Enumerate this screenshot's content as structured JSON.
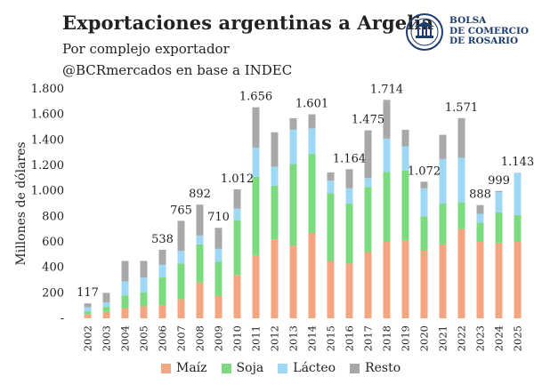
{
  "header": {
    "title": "Exportaciones argentinas a Argelia",
    "subtitle": "Por complejo exportador",
    "source": "@BCRmercados en base a INDEC"
  },
  "logo": {
    "line1": "BOLSA",
    "line2": "DE COMERCIO",
    "line3": "DE ROSARIO"
  },
  "colors": {
    "maiz": "#f4a582",
    "soja": "#7ddb7f",
    "lacteo": "#9fd8f5",
    "resto": "#a8a8a8",
    "brand": "#1f3d6b"
  },
  "chart_data": {
    "type": "bar",
    "stacked": true,
    "ylabel": "Millones de dólares",
    "ylim": [
      0,
      1800
    ],
    "yticks": [
      "-",
      "200",
      "400",
      "600",
      "800",
      "1.000",
      "1.200",
      "1.400",
      "1.600",
      "1.800"
    ],
    "grid": false,
    "legend_position": "bottom",
    "categories": [
      "2002",
      "2003",
      "2004",
      "2005",
      "2006",
      "2007",
      "2008",
      "2009",
      "2010",
      "2011",
      "2012",
      "2013",
      "2014",
      "2015",
      "2016",
      "2017",
      "2018",
      "2019",
      "2020",
      "2021",
      "2022",
      "2023",
      "2024",
      "2025"
    ],
    "series": [
      {
        "name": "Maíz",
        "key": "maiz",
        "values": [
          30,
          50,
          80,
          95,
          100,
          150,
          280,
          175,
          340,
          490,
          620,
          570,
          670,
          450,
          430,
          520,
          600,
          610,
          530,
          580,
          700,
          600,
          590,
          600
        ]
      },
      {
        "name": "Soja",
        "key": "soja",
        "values": [
          25,
          40,
          100,
          110,
          220,
          280,
          300,
          270,
          430,
          620,
          420,
          640,
          620,
          530,
          470,
          510,
          550,
          550,
          270,
          320,
          210,
          150,
          240,
          210
        ]
      },
      {
        "name": "Lácteo",
        "key": "lacteo",
        "values": [
          32,
          35,
          110,
          115,
          100,
          100,
          70,
          100,
          90,
          230,
          150,
          270,
          200,
          100,
          120,
          70,
          260,
          190,
          220,
          350,
          350,
          70,
          160,
          333
        ]
      },
      {
        "name": "Resto",
        "key": "resto",
        "values": [
          30,
          75,
          160,
          130,
          118,
          235,
          242,
          165,
          152,
          316,
          270,
          90,
          111,
          65,
          150,
          375,
          304,
          130,
          52,
          190,
          311,
          68,
          9,
          0
        ]
      }
    ],
    "totals_labels": [
      {
        "category": "2002",
        "label": "117"
      },
      {
        "category": "2007",
        "label": "765"
      },
      {
        "category": "2006",
        "label": "538"
      },
      {
        "category": "2008",
        "label": "892"
      },
      {
        "category": "2009",
        "label": "710"
      },
      {
        "category": "2010",
        "label": "1.012"
      },
      {
        "category": "2011",
        "label": "1.656"
      },
      {
        "category": "2014",
        "label": "1.601"
      },
      {
        "category": "2016",
        "label": "1.164"
      },
      {
        "category": "2017",
        "label": "1.475"
      },
      {
        "category": "2018",
        "label": "1.714"
      },
      {
        "category": "2020",
        "label": "1.072"
      },
      {
        "category": "2022",
        "label": "1.571"
      },
      {
        "category": "2023",
        "label": "888"
      },
      {
        "category": "2024",
        "label": "999"
      },
      {
        "category": "2025",
        "label": "1.143"
      }
    ]
  }
}
